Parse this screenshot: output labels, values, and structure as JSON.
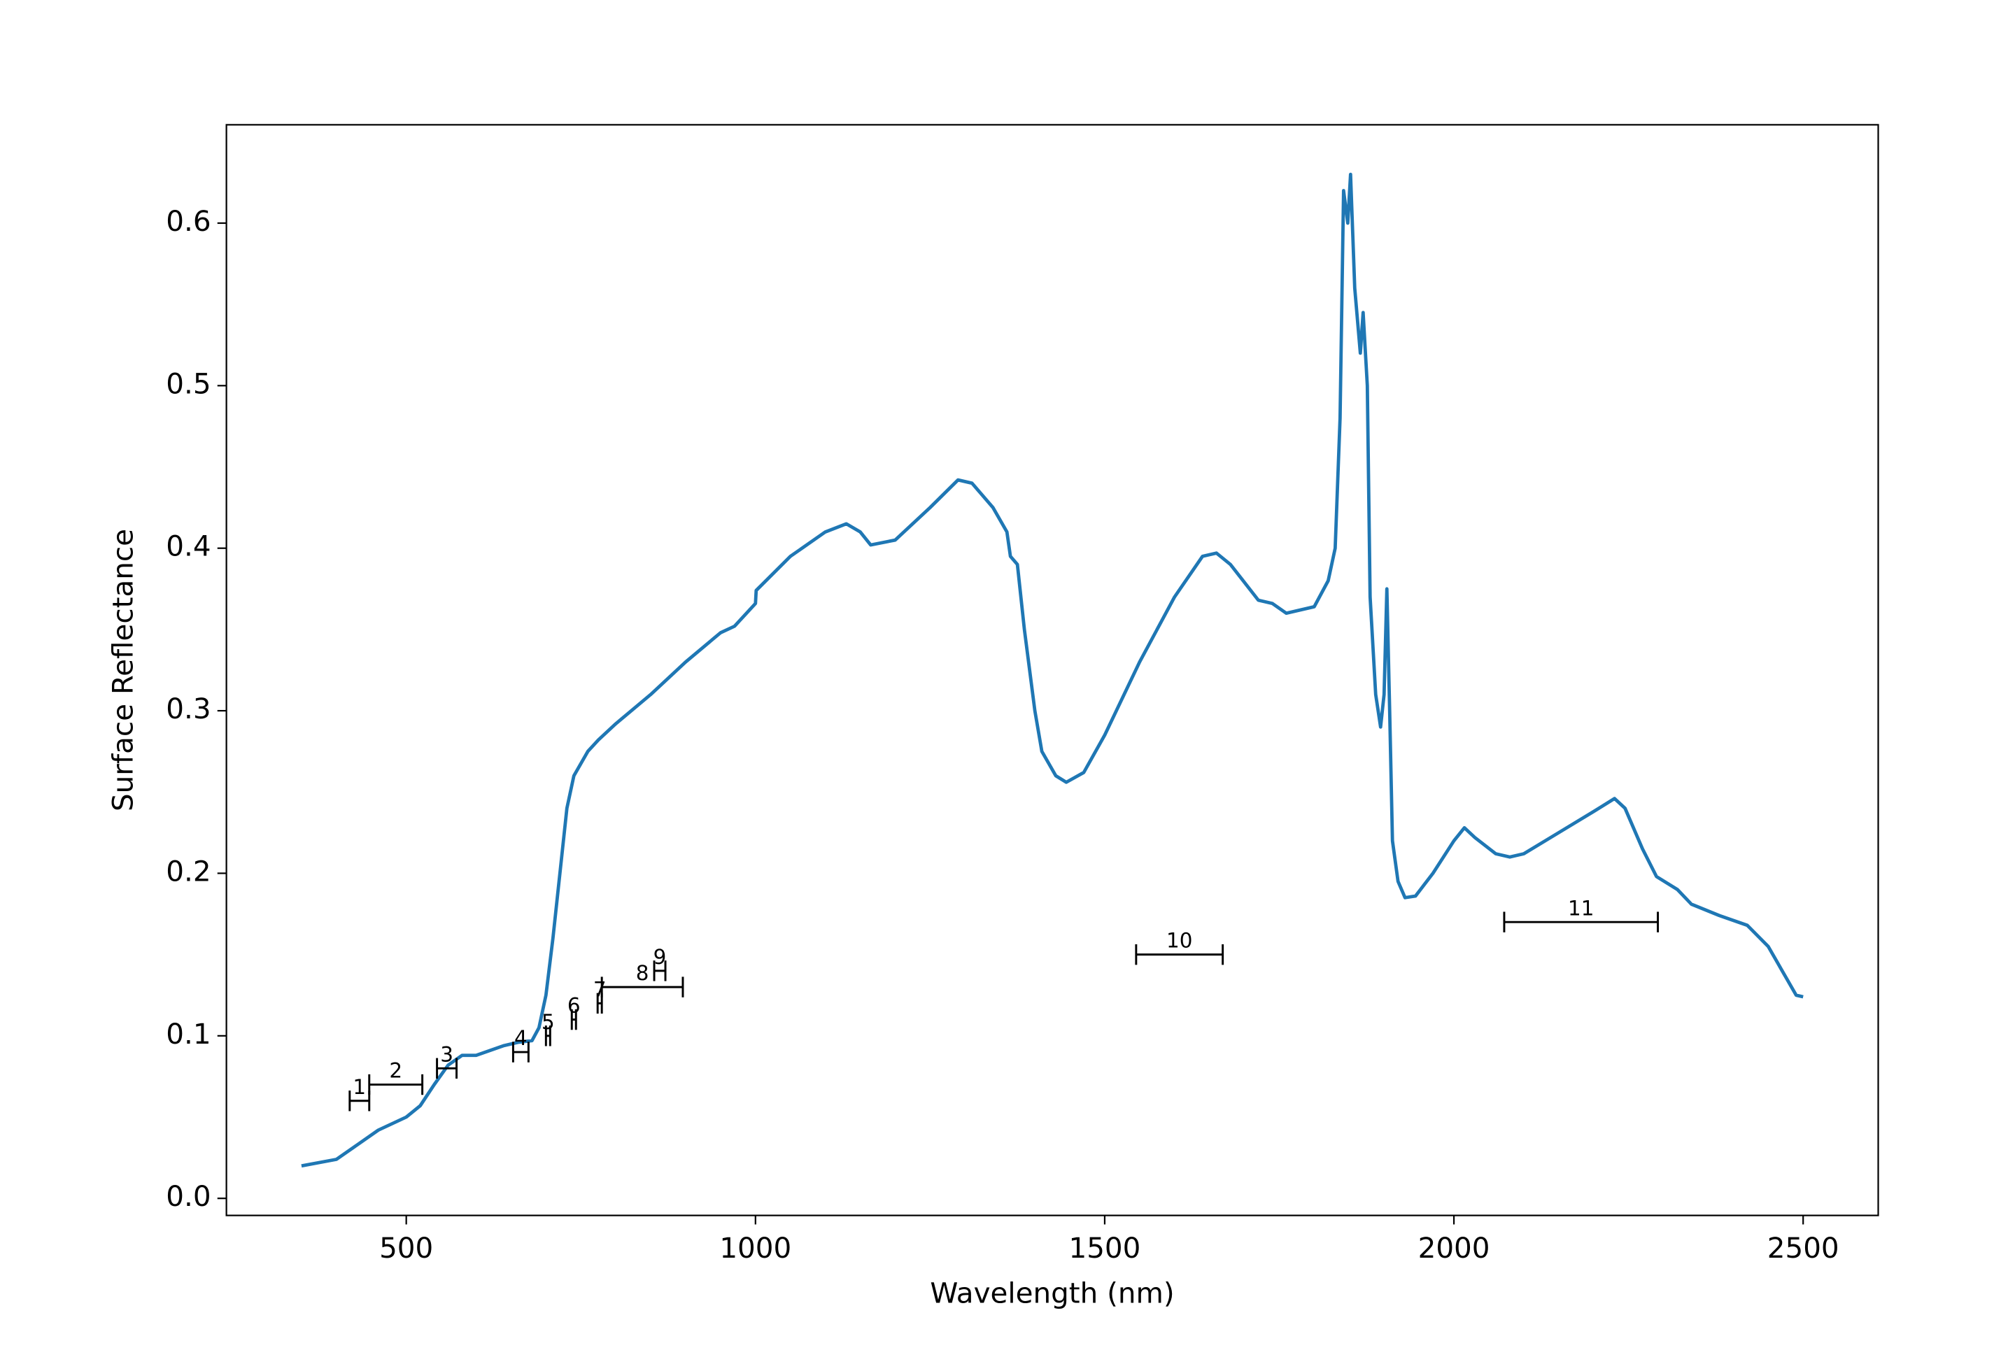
{
  "chart_data": {
    "type": "line",
    "xlabel": "Wavelength (nm)",
    "ylabel": "Surface Reflectance",
    "color": "#1f77b4",
    "x": [
      350,
      400,
      430,
      460,
      500,
      520,
      540,
      560,
      580,
      600,
      640,
      660,
      680,
      690,
      700,
      710,
      720,
      730,
      740,
      760,
      775,
      800,
      850,
      900,
      950,
      970,
      1000,
      1001,
      1050,
      1100,
      1130,
      1150,
      1165,
      1200,
      1250,
      1290,
      1310,
      1340,
      1360,
      1365,
      1375,
      1385,
      1400,
      1410,
      1430,
      1445,
      1470,
      1500,
      1550,
      1600,
      1640,
      1660,
      1680,
      1720,
      1740,
      1760,
      1800,
      1820,
      1830,
      1837,
      1842,
      1848,
      1852,
      1858,
      1866,
      1870,
      1876,
      1880,
      1888,
      1895,
      1900,
      1904,
      1908,
      1912,
      1920,
      1930,
      1945,
      1970,
      2000,
      2015,
      2030,
      2060,
      2080,
      2100,
      2150,
      2200,
      2230,
      2245,
      2270,
      2290,
      2320,
      2340,
      2380,
      2420,
      2450,
      2470,
      2490,
      2500
    ],
    "values": [
      0.02,
      0.024,
      0.033,
      0.042,
      0.05,
      0.057,
      0.07,
      0.082,
      0.088,
      0.088,
      0.094,
      0.096,
      0.097,
      0.105,
      0.125,
      0.16,
      0.2,
      0.24,
      0.26,
      0.275,
      0.282,
      0.292,
      0.31,
      0.33,
      0.348,
      0.352,
      0.366,
      0.374,
      0.395,
      0.41,
      0.415,
      0.41,
      0.402,
      0.405,
      0.425,
      0.442,
      0.44,
      0.425,
      0.41,
      0.395,
      0.39,
      0.35,
      0.3,
      0.275,
      0.26,
      0.256,
      0.262,
      0.285,
      0.33,
      0.37,
      0.395,
      0.397,
      0.39,
      0.368,
      0.366,
      0.36,
      0.364,
      0.38,
      0.4,
      0.48,
      0.62,
      0.6,
      0.63,
      0.56,
      0.52,
      0.545,
      0.5,
      0.37,
      0.31,
      0.29,
      0.31,
      0.375,
      0.3,
      0.22,
      0.195,
      0.185,
      0.186,
      0.2,
      0.22,
      0.228,
      0.222,
      0.212,
      0.21,
      0.212,
      0.225,
      0.238,
      0.246,
      0.24,
      0.215,
      0.198,
      0.19,
      0.181,
      0.174,
      0.168,
      0.155,
      0.14,
      0.125,
      0.124
    ],
    "errorbars": {
      "labels": [
        "1",
        "2",
        "3",
        "4",
        "5",
        "6",
        "7",
        "8",
        "9",
        "10",
        "11"
      ],
      "x": [
        433,
        485,
        558,
        664,
        703,
        740,
        777,
        838,
        863,
        1607,
        2182
      ],
      "y": [
        0.06,
        0.07,
        0.08,
        0.09,
        0.1,
        0.11,
        0.12,
        0.13,
        0.14,
        0.15,
        0.17
      ],
      "xerr": [
        14,
        38,
        14,
        11,
        3,
        3,
        3,
        58,
        8,
        62,
        110
      ]
    },
    "xlim": [
      242.5,
      2607.5
    ],
    "ylim": [
      -0.0105,
      0.6605
    ],
    "xticks": [
      500,
      1000,
      1500,
      2000,
      2500
    ],
    "yticks": [
      {
        "value": 0,
        "label": "0.0"
      },
      0.1,
      0.2,
      0.3,
      0.4,
      0.5,
      0.6
    ]
  }
}
